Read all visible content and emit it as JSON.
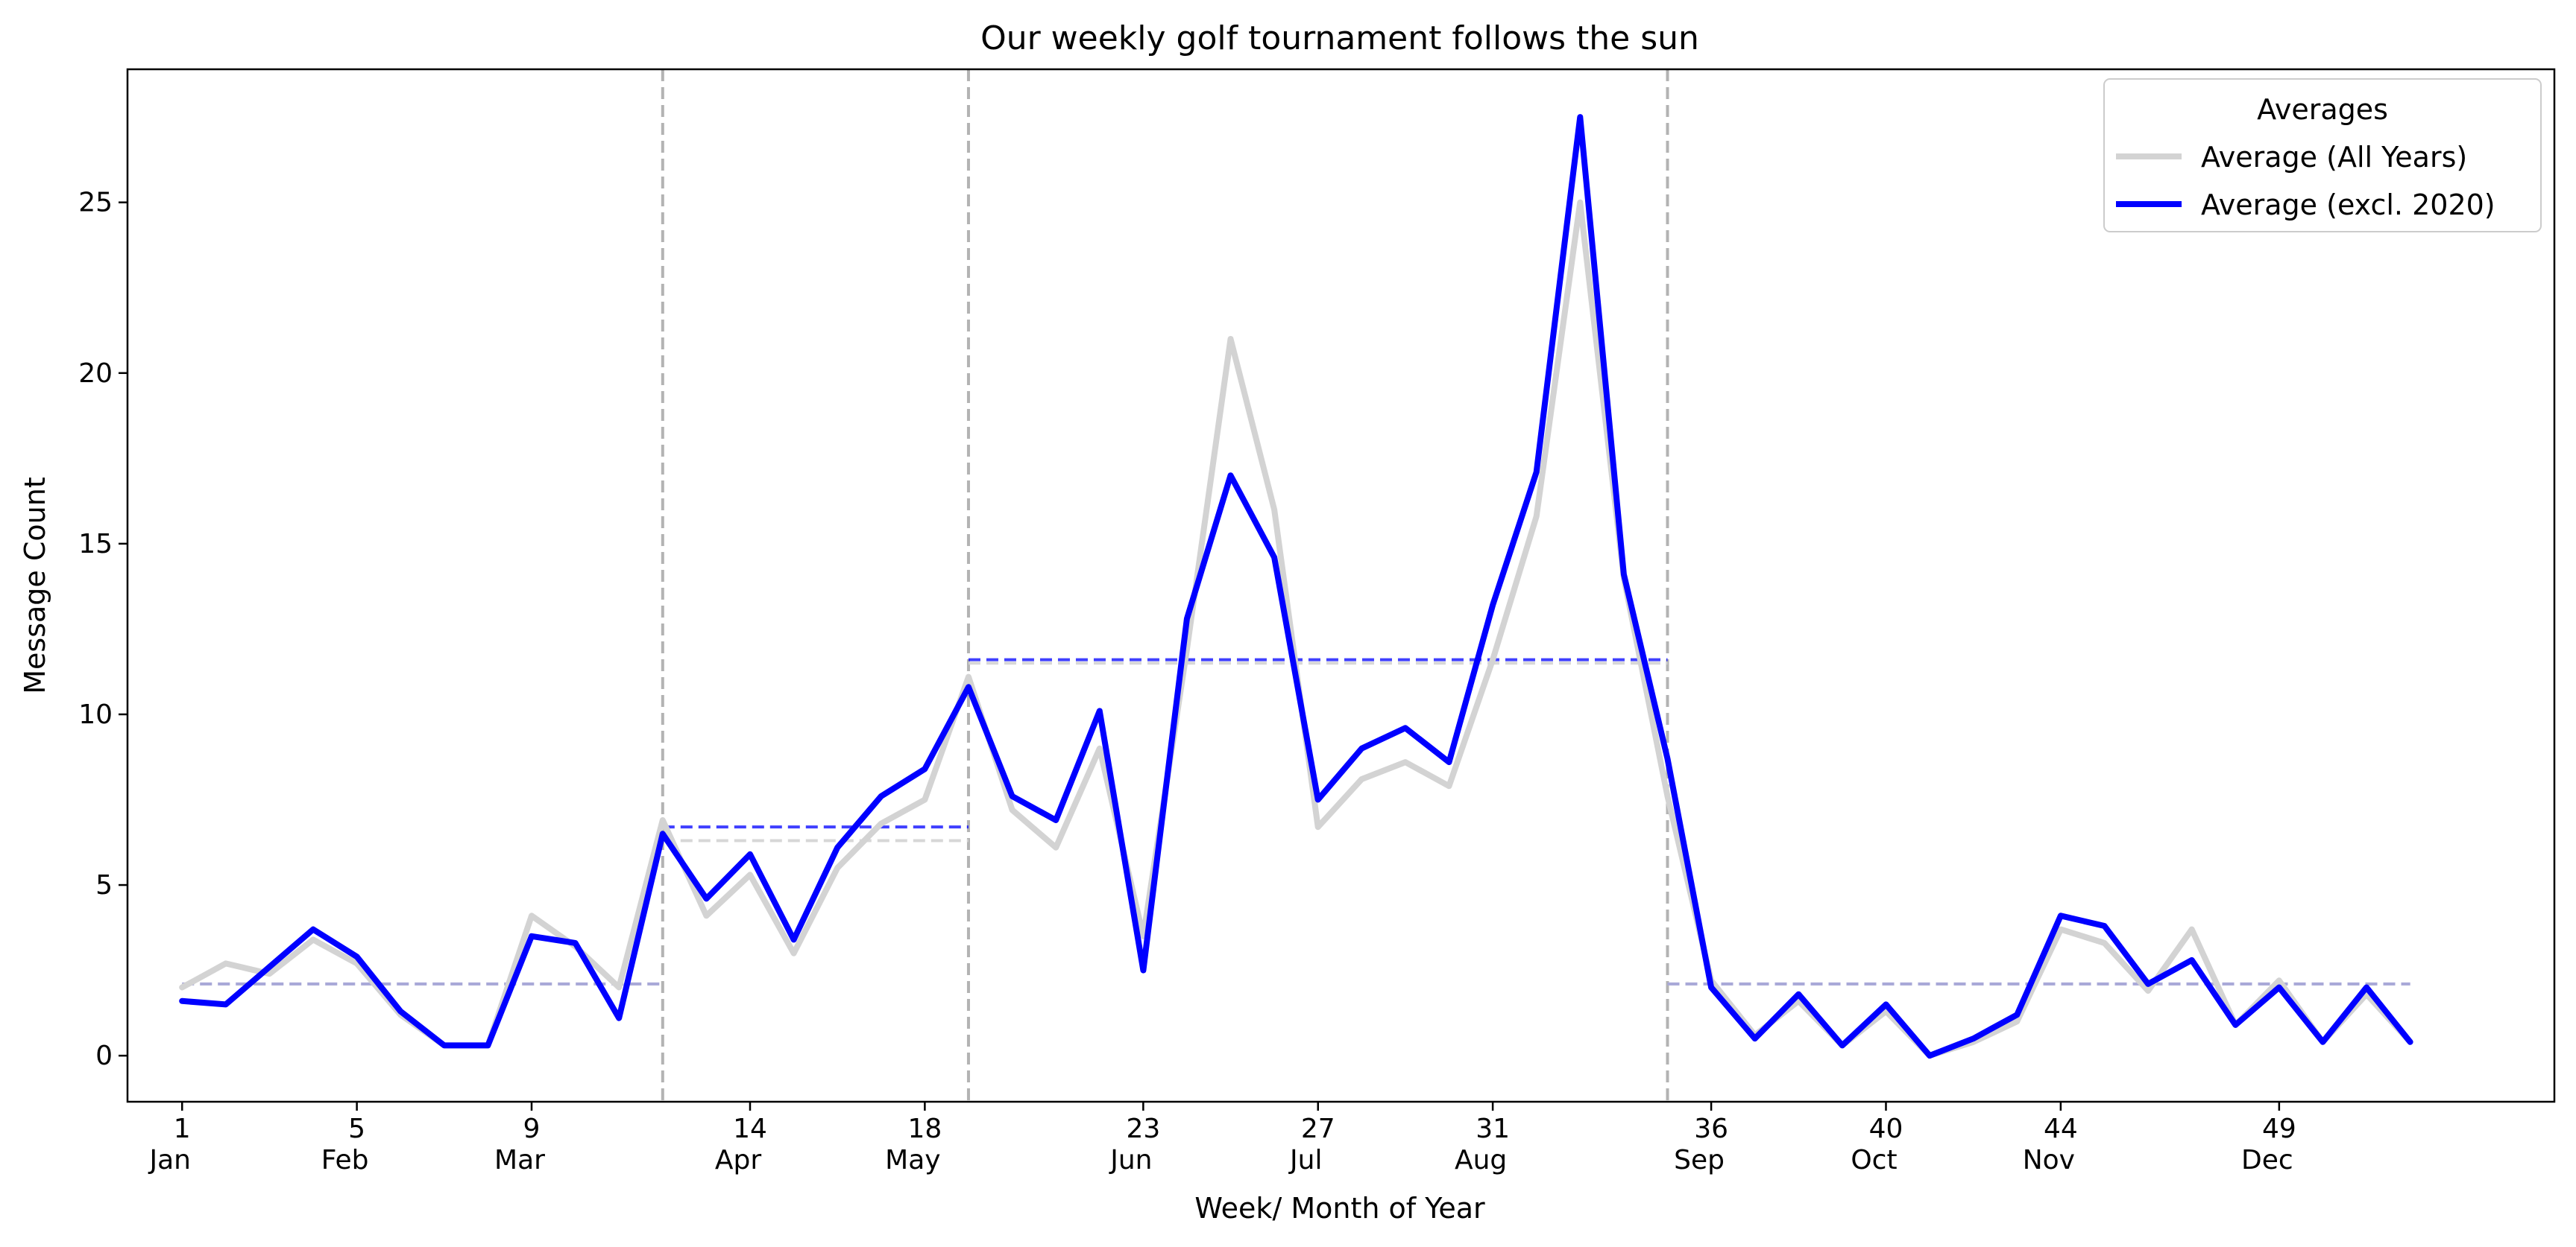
{
  "chart_data": {
    "type": "line",
    "title": "Our weekly golf tournament follows the sun",
    "xlabel": "Week/ Month of Year",
    "ylabel": "Message Count",
    "xlim": [
      -0.25,
      55.3
    ],
    "ylim": [
      -1.35,
      28.9
    ],
    "yticks": [
      0,
      5,
      10,
      15,
      20,
      25
    ],
    "xticks": [
      {
        "week": 1,
        "month": "Jan"
      },
      {
        "week": 5,
        "month": "Feb"
      },
      {
        "week": 9,
        "month": "Mar"
      },
      {
        "week": 14,
        "month": "Apr"
      },
      {
        "week": 18,
        "month": "May"
      },
      {
        "week": 23,
        "month": "Jun"
      },
      {
        "week": 27,
        "month": "Jul"
      },
      {
        "week": 31,
        "month": "Aug"
      },
      {
        "week": 36,
        "month": "Sep"
      },
      {
        "week": 40,
        "month": "Oct"
      },
      {
        "week": 44,
        "month": "Nov"
      },
      {
        "week": 49,
        "month": "Dec"
      }
    ],
    "x": [
      1,
      2,
      3,
      4,
      5,
      6,
      7,
      8,
      9,
      10,
      11,
      12,
      13,
      14,
      15,
      16,
      17,
      18,
      19,
      20,
      21,
      22,
      23,
      24,
      25,
      26,
      27,
      28,
      29,
      30,
      31,
      32,
      33,
      34,
      35,
      36,
      37,
      38,
      39,
      40,
      41,
      42,
      43,
      44,
      45,
      46,
      47,
      48,
      49,
      50,
      51,
      52
    ],
    "series": [
      {
        "name": "Average (All Years)",
        "color": "#d3d3d3",
        "values": [
          2.0,
          2.7,
          2.4,
          3.4,
          2.7,
          1.2,
          0.3,
          0.3,
          4.1,
          3.2,
          2.0,
          6.9,
          4.1,
          5.3,
          3.0,
          5.5,
          6.8,
          7.5,
          11.1,
          7.2,
          6.1,
          9.0,
          3.5,
          11.9,
          21.0,
          16.0,
          6.7,
          8.1,
          8.6,
          7.9,
          11.6,
          15.8,
          25.0,
          14.0,
          7.6,
          2.2,
          0.6,
          1.6,
          0.3,
          1.3,
          0.0,
          0.4,
          1.0,
          3.7,
          3.3,
          1.9,
          3.7,
          0.9,
          2.2,
          0.4,
          1.8,
          0.4
        ]
      },
      {
        "name": "Average (excl. 2020)",
        "color": "#0000ff",
        "values": [
          1.6,
          1.5,
          2.6,
          3.7,
          2.9,
          1.3,
          0.3,
          0.3,
          3.5,
          3.3,
          1.1,
          6.5,
          4.6,
          5.9,
          3.4,
          6.1,
          7.6,
          8.4,
          10.8,
          7.6,
          6.9,
          10.1,
          2.5,
          12.8,
          17.0,
          14.6,
          7.5,
          9.0,
          9.6,
          8.6,
          13.2,
          17.1,
          27.5,
          14.1,
          8.7,
          2.0,
          0.5,
          1.8,
          0.3,
          1.5,
          0.0,
          0.5,
          1.2,
          4.1,
          3.8,
          2.1,
          2.8,
          0.9,
          2.0,
          0.4,
          2.0,
          0.4
        ]
      }
    ],
    "boundaries": [
      12.0,
      19.0,
      35.0
    ],
    "season_averages": [
      {
        "start": 1,
        "end": 12.0,
        "all_years": 2.1,
        "excl_2020": 2.1,
        "faded": true
      },
      {
        "start": 12.0,
        "end": 19.0,
        "all_years": 6.3,
        "excl_2020": 6.7,
        "faded": false
      },
      {
        "start": 19.0,
        "end": 35.0,
        "all_years": 11.5,
        "excl_2020": 11.6,
        "faded": false
      },
      {
        "start": 35.0,
        "end": 52,
        "all_years": 2.1,
        "excl_2020": 2.1,
        "faded": true
      }
    ],
    "legend": {
      "title": "Averages",
      "placement": "top-right",
      "entries": [
        "Average (All Years)",
        "Average (excl. 2020)"
      ]
    },
    "grid": false
  }
}
